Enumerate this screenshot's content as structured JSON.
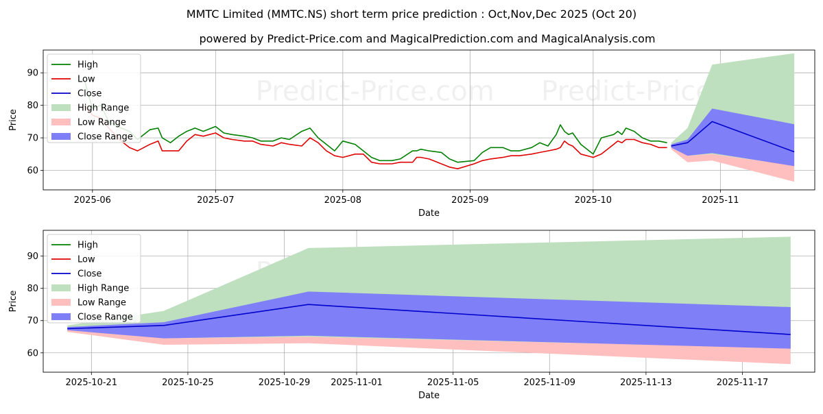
{
  "title": "MMTC Limited (MMTC.NS) short term price prediction : Oct,Nov,Dec 2025 (Oct 20)",
  "subtitle": "powered by Predict-Price.com and MagicalPrediction.com and MagicalAnalysis.com",
  "watermark": "Predict-Price.com",
  "colors": {
    "high": "#008000",
    "low": "#e00000",
    "close": "#0000cc",
    "high_range": "#bfe0bf",
    "low_range": "#ffbfbf",
    "close_range": "#7f7ff7"
  },
  "chart_data": [
    {
      "type": "line",
      "name": "history",
      "xlabel": "Date",
      "ylabel": "Price",
      "grid": true,
      "legend_position": "top-left",
      "xlim": [
        "2025-05-20",
        "2025-11-24"
      ],
      "ylim": [
        54,
        97
      ],
      "yticks": [
        60,
        70,
        80,
        90
      ],
      "xticks": [
        {
          "date": "2025-06-01",
          "label": "2025-06"
        },
        {
          "date": "2025-07-01",
          "label": "2025-07"
        },
        {
          "date": "2025-08-01",
          "label": "2025-08"
        },
        {
          "date": "2025-09-01",
          "label": "2025-09"
        },
        {
          "date": "2025-10-01",
          "label": "2025-10"
        },
        {
          "date": "2025-11-01",
          "label": "2025-11"
        }
      ],
      "legend": [
        "High",
        "Low",
        "Close",
        "High Range",
        "Low Range",
        "Close Range"
      ],
      "series": [
        {
          "name": "High",
          "x": [
            "2025-05-30",
            "2025-06-01",
            "2025-06-03",
            "2025-06-05",
            "2025-06-08",
            "2025-06-10",
            "2025-06-12",
            "2025-06-15",
            "2025-06-17",
            "2025-06-18",
            "2025-06-20",
            "2025-06-22",
            "2025-06-24",
            "2025-06-26",
            "2025-06-28",
            "2025-07-01",
            "2025-07-03",
            "2025-07-05",
            "2025-07-08",
            "2025-07-10",
            "2025-07-12",
            "2025-07-15",
            "2025-07-17",
            "2025-07-19",
            "2025-07-22",
            "2025-07-24",
            "2025-07-26",
            "2025-07-28",
            "2025-07-30",
            "2025-08-01",
            "2025-08-04",
            "2025-08-06",
            "2025-08-08",
            "2025-08-10",
            "2025-08-13",
            "2025-08-15",
            "2025-08-18",
            "2025-08-19",
            "2025-08-20",
            "2025-08-22",
            "2025-08-25",
            "2025-08-27",
            "2025-08-29",
            "2025-09-02",
            "2025-09-04",
            "2025-09-06",
            "2025-09-09",
            "2025-09-11",
            "2025-09-13",
            "2025-09-16",
            "2025-09-18",
            "2025-09-20",
            "2025-09-22",
            "2025-09-23",
            "2025-09-24",
            "2025-09-25",
            "2025-09-26",
            "2025-09-28",
            "2025-10-01",
            "2025-10-03",
            "2025-10-06",
            "2025-10-07",
            "2025-10-08",
            "2025-10-09",
            "2025-10-11",
            "2025-10-13",
            "2025-10-15",
            "2025-10-17",
            "2025-10-19"
          ],
          "values": [
            88,
            79,
            80,
            75,
            73,
            72,
            69.5,
            72.5,
            73,
            70,
            68.5,
            70.5,
            72,
            73,
            72,
            73.5,
            71.5,
            71,
            70.5,
            70,
            69,
            69,
            70,
            69.5,
            72,
            73,
            70,
            68,
            66,
            69,
            68,
            66,
            64,
            63,
            63,
            63.5,
            66,
            66,
            66.5,
            66,
            65.5,
            63.5,
            62.5,
            63,
            65.5,
            67,
            67,
            66,
            66,
            67,
            68.5,
            67.5,
            71,
            74,
            72,
            71,
            71.5,
            68,
            65,
            70,
            71,
            72,
            71,
            73,
            72,
            70,
            69,
            69,
            68.5
          ]
        },
        {
          "name": "Low",
          "x": [
            "2025-05-30",
            "2025-06-01",
            "2025-06-03",
            "2025-06-05",
            "2025-06-08",
            "2025-06-10",
            "2025-06-12",
            "2025-06-15",
            "2025-06-17",
            "2025-06-18",
            "2025-06-20",
            "2025-06-22",
            "2025-06-24",
            "2025-06-26",
            "2025-06-28",
            "2025-07-01",
            "2025-07-03",
            "2025-07-05",
            "2025-07-08",
            "2025-07-10",
            "2025-07-12",
            "2025-07-15",
            "2025-07-17",
            "2025-07-19",
            "2025-07-22",
            "2025-07-24",
            "2025-07-26",
            "2025-07-28",
            "2025-07-30",
            "2025-08-01",
            "2025-08-04",
            "2025-08-06",
            "2025-08-08",
            "2025-08-10",
            "2025-08-13",
            "2025-08-15",
            "2025-08-18",
            "2025-08-19",
            "2025-08-20",
            "2025-08-22",
            "2025-08-25",
            "2025-08-27",
            "2025-08-29",
            "2025-09-02",
            "2025-09-04",
            "2025-09-06",
            "2025-09-09",
            "2025-09-11",
            "2025-09-13",
            "2025-09-16",
            "2025-09-18",
            "2025-09-20",
            "2025-09-22",
            "2025-09-23",
            "2025-09-24",
            "2025-09-25",
            "2025-09-26",
            "2025-09-28",
            "2025-10-01",
            "2025-10-03",
            "2025-10-06",
            "2025-10-07",
            "2025-10-08",
            "2025-10-09",
            "2025-10-11",
            "2025-10-13",
            "2025-10-15",
            "2025-10-17",
            "2025-10-19"
          ],
          "values": [
            80,
            77,
            76,
            73,
            69,
            67,
            66,
            68,
            69,
            66,
            66,
            66,
            69,
            71,
            70.5,
            71.5,
            70,
            69.5,
            69,
            69,
            68,
            67.5,
            68.5,
            68,
            67.5,
            70,
            68.5,
            66,
            64.5,
            64,
            65,
            65,
            62.5,
            62,
            62,
            62.5,
            62.5,
            64,
            64,
            63.5,
            62,
            61,
            60.5,
            62,
            63,
            63.5,
            64,
            64.5,
            64.5,
            65,
            65.5,
            66,
            66.5,
            67,
            69,
            68,
            67.5,
            65,
            64,
            65,
            68,
            69,
            68.5,
            69.5,
            69.5,
            68.5,
            68,
            67,
            67
          ]
        },
        {
          "name": "Close",
          "x": [
            "2025-10-20",
            "2025-10-24",
            "2025-10-30",
            "2025-11-19"
          ],
          "values": [
            67.5,
            68.5,
            75,
            65.7
          ]
        }
      ],
      "bands": [
        {
          "name": "High Range",
          "x": [
            "2025-10-20",
            "2025-10-24",
            "2025-10-30",
            "2025-11-19"
          ],
          "upper": [
            68.5,
            73,
            92.5,
            96
          ],
          "lower": [
            67,
            64.5,
            65,
            61.5
          ]
        },
        {
          "name": "Low Range",
          "x": [
            "2025-10-20",
            "2025-10-24",
            "2025-10-30",
            "2025-11-19"
          ],
          "upper": [
            67.5,
            64.5,
            65,
            61.5
          ],
          "lower": [
            66.5,
            62.5,
            63,
            56.5
          ]
        },
        {
          "name": "Close Range",
          "x": [
            "2025-10-20",
            "2025-10-24",
            "2025-10-30",
            "2025-11-19"
          ],
          "upper": [
            68,
            69.5,
            79,
            74.2
          ],
          "lower": [
            67,
            64.5,
            65.3,
            61.3
          ]
        }
      ]
    },
    {
      "type": "line",
      "name": "forecast",
      "xlabel": "Date",
      "ylabel": "Price",
      "grid": true,
      "legend_position": "top-left",
      "xlim": [
        "2025-10-19",
        "2025-11-20"
      ],
      "ylim": [
        54,
        98
      ],
      "yticks": [
        60,
        70,
        80,
        90
      ],
      "xticks": [
        {
          "date": "2025-10-21",
          "label": "2025-10-21"
        },
        {
          "date": "2025-10-25",
          "label": "2025-10-25"
        },
        {
          "date": "2025-10-29",
          "label": "2025-10-29"
        },
        {
          "date": "2025-11-01",
          "label": "2025-11-01"
        },
        {
          "date": "2025-11-05",
          "label": "2025-11-05"
        },
        {
          "date": "2025-11-09",
          "label": "2025-11-09"
        },
        {
          "date": "2025-11-13",
          "label": "2025-11-13"
        },
        {
          "date": "2025-11-17",
          "label": "2025-11-17"
        }
      ],
      "legend": [
        "High",
        "Low",
        "Close",
        "High Range",
        "Low Range",
        "Close Range"
      ],
      "series": [
        {
          "name": "Close",
          "x": [
            "2025-10-20",
            "2025-10-24",
            "2025-10-30",
            "2025-11-19"
          ],
          "values": [
            67.5,
            68.5,
            75,
            65.7
          ]
        }
      ],
      "bands": [
        {
          "name": "High Range",
          "x": [
            "2025-10-20",
            "2025-10-24",
            "2025-10-30",
            "2025-11-19"
          ],
          "upper": [
            68.5,
            73,
            92.5,
            96
          ],
          "lower": [
            67,
            64.5,
            65,
            61.5
          ]
        },
        {
          "name": "Low Range",
          "x": [
            "2025-10-20",
            "2025-10-24",
            "2025-10-30",
            "2025-11-19"
          ],
          "upper": [
            67.5,
            64.5,
            65,
            61.5
          ],
          "lower": [
            66.5,
            62.5,
            63,
            56.5
          ]
        },
        {
          "name": "Close Range",
          "x": [
            "2025-10-20",
            "2025-10-24",
            "2025-10-30",
            "2025-11-19"
          ],
          "upper": [
            68,
            69.5,
            79,
            74.2
          ],
          "lower": [
            67,
            64.5,
            65.3,
            61.3
          ]
        }
      ]
    }
  ]
}
